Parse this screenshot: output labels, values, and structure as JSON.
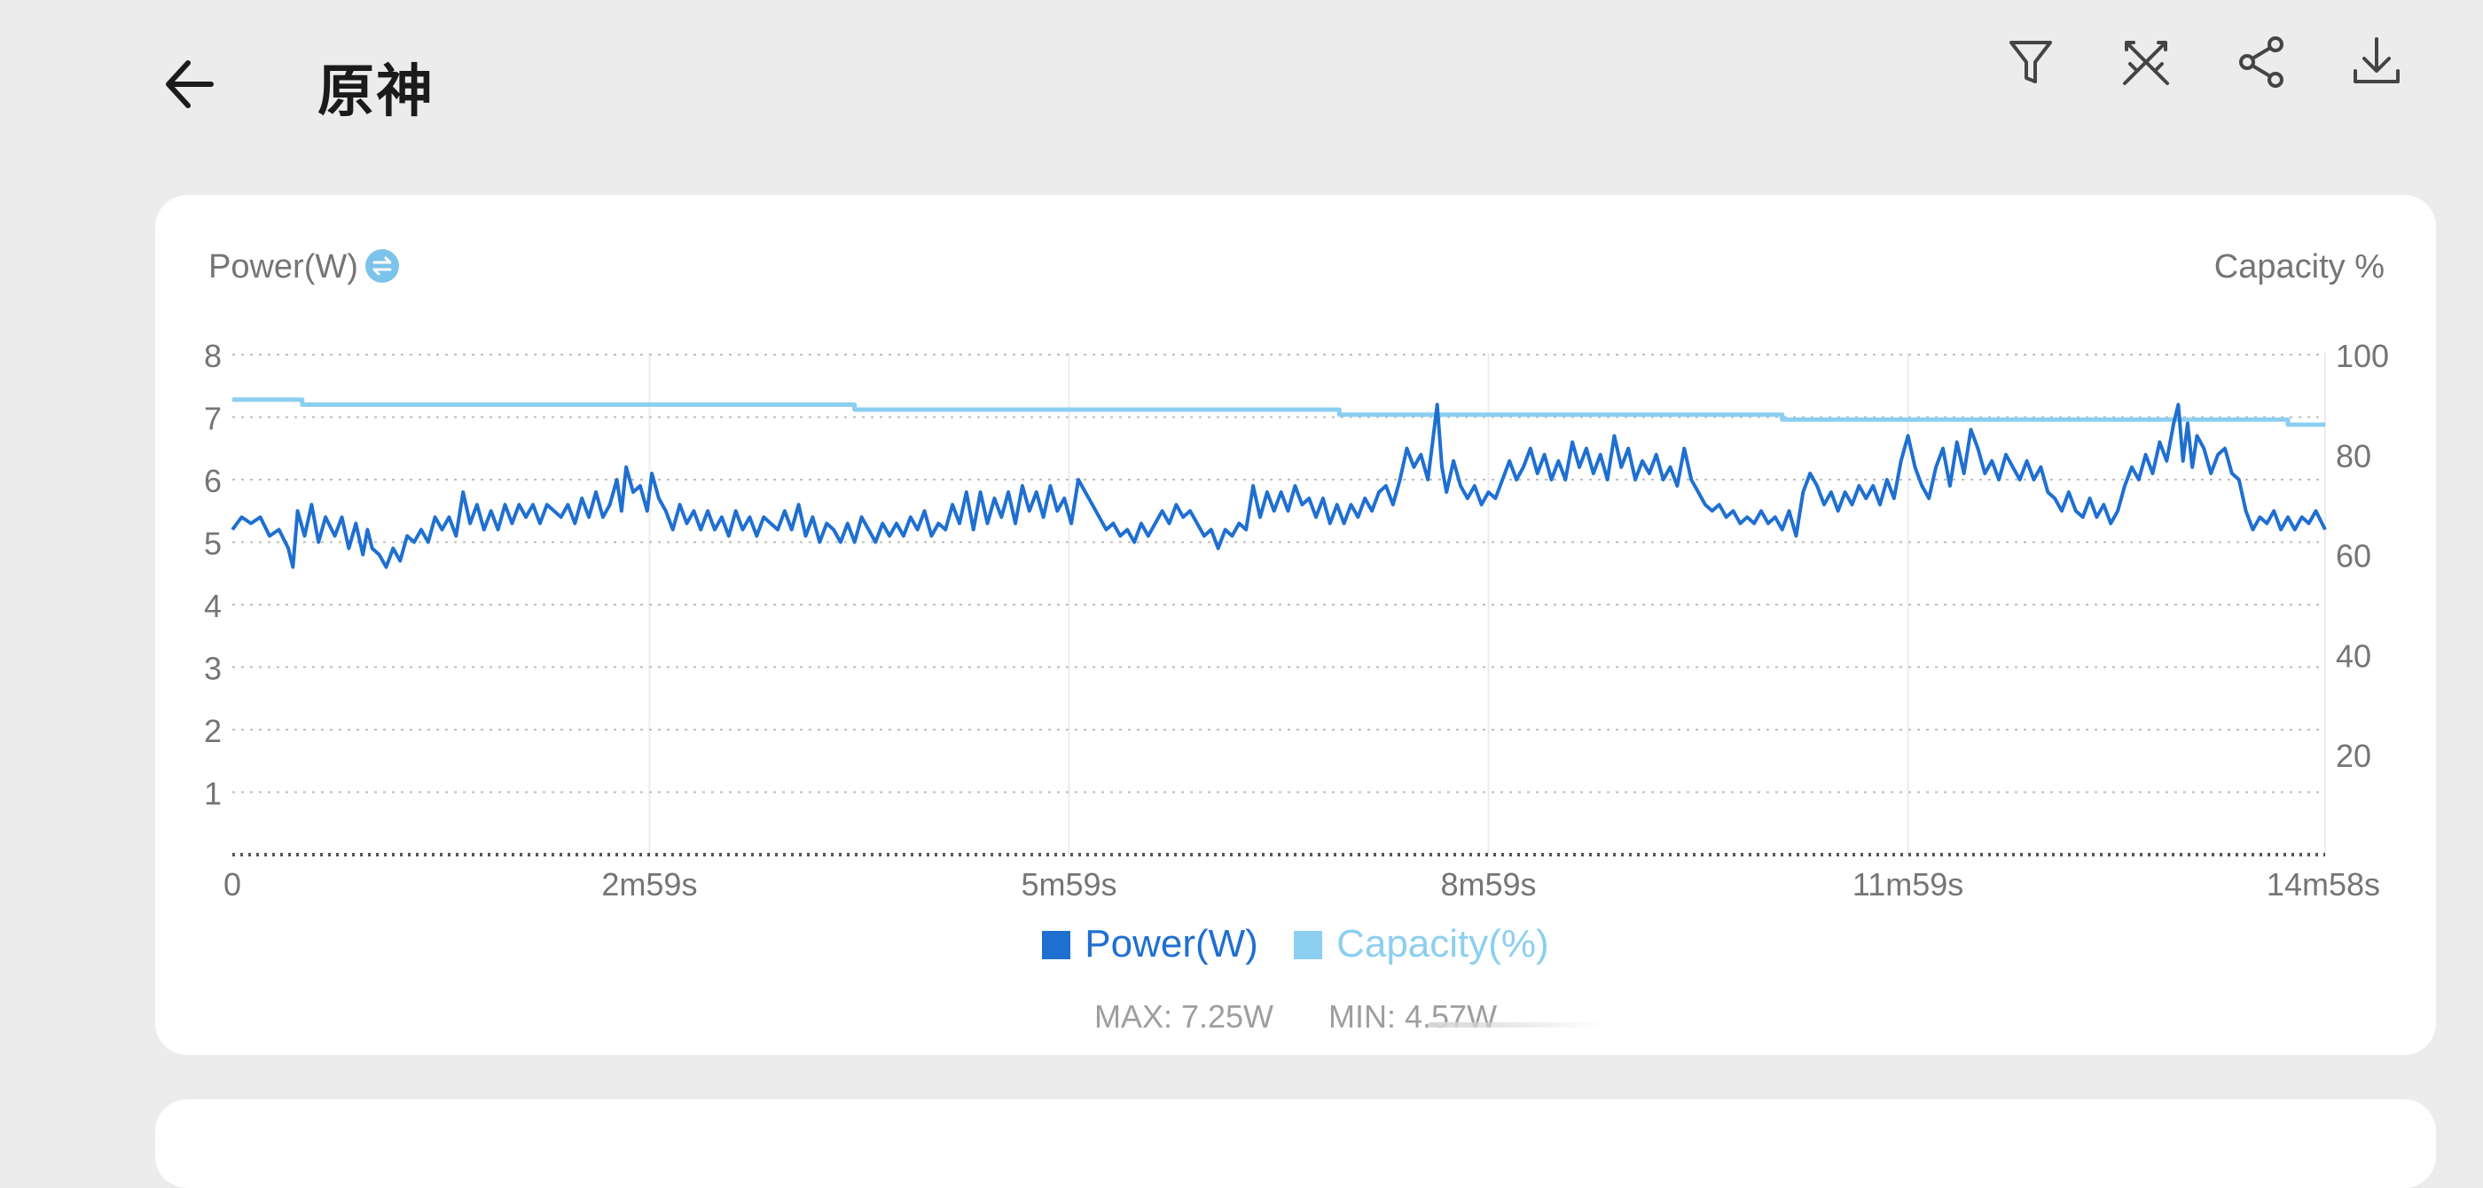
{
  "header": {
    "title": "原神"
  },
  "toolbar": {
    "icons": [
      "filter-icon",
      "crossed-swords-icon",
      "share-icon",
      "download-icon"
    ]
  },
  "colors": {
    "power": "#1f6fd1",
    "capacity": "#8ccff0",
    "swap_icon": "#7cc3ec"
  },
  "chart_data": {
    "type": "line",
    "ylabel_left": "Power(W)",
    "ylabel_right": "Capacity %",
    "y_left": {
      "lim": [
        0,
        8
      ],
      "ticks": [
        1,
        2,
        3,
        4,
        5,
        6,
        7,
        8
      ]
    },
    "y_right": {
      "lim": [
        0,
        100
      ],
      "ticks": [
        20,
        40,
        60,
        80,
        100
      ]
    },
    "x_lim": [
      0,
      898
    ],
    "x_ticks": [
      {
        "value": 0,
        "label": "0"
      },
      {
        "value": 179,
        "label": "2m59s"
      },
      {
        "value": 359,
        "label": "5m59s"
      },
      {
        "value": 539,
        "label": "8m59s"
      },
      {
        "value": 719,
        "label": "11m59s"
      },
      {
        "value": 898,
        "label": "14m58s"
      }
    ],
    "grid": true,
    "legend_position": "bottom-center",
    "series": [
      {
        "name": "Power(W)",
        "axis": "left",
        "points": [
          [
            0,
            5.2
          ],
          [
            4,
            5.4
          ],
          [
            8,
            5.3
          ],
          [
            12,
            5.4
          ],
          [
            16,
            5.1
          ],
          [
            20,
            5.2
          ],
          [
            24,
            4.9
          ],
          [
            26,
            4.6
          ],
          [
            28,
            5.5
          ],
          [
            31,
            5.1
          ],
          [
            34,
            5.6
          ],
          [
            37,
            5.0
          ],
          [
            40,
            5.4
          ],
          [
            44,
            5.1
          ],
          [
            47,
            5.4
          ],
          [
            50,
            4.9
          ],
          [
            53,
            5.3
          ],
          [
            56,
            4.8
          ],
          [
            58,
            5.2
          ],
          [
            60,
            4.9
          ],
          [
            63,
            4.8
          ],
          [
            66,
            4.6
          ],
          [
            69,
            4.9
          ],
          [
            72,
            4.7
          ],
          [
            75,
            5.1
          ],
          [
            78,
            5.0
          ],
          [
            81,
            5.2
          ],
          [
            84,
            5.0
          ],
          [
            87,
            5.4
          ],
          [
            90,
            5.2
          ],
          [
            93,
            5.4
          ],
          [
            96,
            5.1
          ],
          [
            99,
            5.8
          ],
          [
            102,
            5.3
          ],
          [
            105,
            5.6
          ],
          [
            108,
            5.2
          ],
          [
            111,
            5.5
          ],
          [
            114,
            5.2
          ],
          [
            117,
            5.6
          ],
          [
            120,
            5.3
          ],
          [
            123,
            5.6
          ],
          [
            126,
            5.4
          ],
          [
            129,
            5.6
          ],
          [
            132,
            5.3
          ],
          [
            135,
            5.6
          ],
          [
            138,
            5.5
          ],
          [
            141,
            5.4
          ],
          [
            144,
            5.6
          ],
          [
            147,
            5.3
          ],
          [
            150,
            5.7
          ],
          [
            153,
            5.4
          ],
          [
            156,
            5.8
          ],
          [
            159,
            5.4
          ],
          [
            162,
            5.6
          ],
          [
            165,
            6.0
          ],
          [
            167,
            5.5
          ],
          [
            169,
            6.2
          ],
          [
            172,
            5.8
          ],
          [
            175,
            5.9
          ],
          [
            178,
            5.5
          ],
          [
            180,
            6.1
          ],
          [
            183,
            5.7
          ],
          [
            186,
            5.5
          ],
          [
            189,
            5.2
          ],
          [
            192,
            5.6
          ],
          [
            195,
            5.3
          ],
          [
            198,
            5.5
          ],
          [
            201,
            5.2
          ],
          [
            204,
            5.5
          ],
          [
            207,
            5.2
          ],
          [
            210,
            5.4
          ],
          [
            213,
            5.1
          ],
          [
            216,
            5.5
          ],
          [
            219,
            5.2
          ],
          [
            222,
            5.4
          ],
          [
            225,
            5.1
          ],
          [
            228,
            5.4
          ],
          [
            231,
            5.3
          ],
          [
            234,
            5.2
          ],
          [
            237,
            5.5
          ],
          [
            240,
            5.2
          ],
          [
            243,
            5.6
          ],
          [
            246,
            5.1
          ],
          [
            249,
            5.4
          ],
          [
            252,
            5.0
          ],
          [
            255,
            5.3
          ],
          [
            258,
            5.2
          ],
          [
            261,
            5.0
          ],
          [
            264,
            5.3
          ],
          [
            267,
            5.0
          ],
          [
            270,
            5.4
          ],
          [
            273,
            5.2
          ],
          [
            276,
            5.0
          ],
          [
            279,
            5.3
          ],
          [
            282,
            5.1
          ],
          [
            285,
            5.3
          ],
          [
            288,
            5.1
          ],
          [
            291,
            5.4
          ],
          [
            294,
            5.2
          ],
          [
            297,
            5.5
          ],
          [
            300,
            5.1
          ],
          [
            303,
            5.3
          ],
          [
            306,
            5.2
          ],
          [
            309,
            5.6
          ],
          [
            312,
            5.3
          ],
          [
            315,
            5.8
          ],
          [
            318,
            5.2
          ],
          [
            321,
            5.8
          ],
          [
            324,
            5.3
          ],
          [
            327,
            5.7
          ],
          [
            330,
            5.4
          ],
          [
            333,
            5.8
          ],
          [
            336,
            5.3
          ],
          [
            339,
            5.9
          ],
          [
            342,
            5.5
          ],
          [
            345,
            5.8
          ],
          [
            348,
            5.4
          ],
          [
            351,
            5.9
          ],
          [
            354,
            5.5
          ],
          [
            357,
            5.7
          ],
          [
            360,
            5.3
          ],
          [
            363,
            6.0
          ],
          [
            366,
            5.8
          ],
          [
            369,
            5.6
          ],
          [
            372,
            5.4
          ],
          [
            375,
            5.2
          ],
          [
            378,
            5.3
          ],
          [
            381,
            5.1
          ],
          [
            384,
            5.2
          ],
          [
            387,
            5.0
          ],
          [
            390,
            5.3
          ],
          [
            393,
            5.1
          ],
          [
            396,
            5.3
          ],
          [
            399,
            5.5
          ],
          [
            402,
            5.3
          ],
          [
            405,
            5.6
          ],
          [
            408,
            5.4
          ],
          [
            411,
            5.5
          ],
          [
            414,
            5.3
          ],
          [
            417,
            5.1
          ],
          [
            420,
            5.2
          ],
          [
            423,
            4.9
          ],
          [
            426,
            5.2
          ],
          [
            429,
            5.1
          ],
          [
            432,
            5.3
          ],
          [
            435,
            5.2
          ],
          [
            438,
            5.9
          ],
          [
            441,
            5.4
          ],
          [
            444,
            5.8
          ],
          [
            447,
            5.5
          ],
          [
            450,
            5.8
          ],
          [
            453,
            5.5
          ],
          [
            456,
            5.9
          ],
          [
            459,
            5.6
          ],
          [
            462,
            5.7
          ],
          [
            465,
            5.4
          ],
          [
            468,
            5.7
          ],
          [
            471,
            5.3
          ],
          [
            474,
            5.6
          ],
          [
            477,
            5.3
          ],
          [
            480,
            5.6
          ],
          [
            483,
            5.4
          ],
          [
            486,
            5.7
          ],
          [
            489,
            5.5
          ],
          [
            492,
            5.8
          ],
          [
            495,
            5.9
          ],
          [
            498,
            5.6
          ],
          [
            501,
            6.0
          ],
          [
            504,
            6.5
          ],
          [
            507,
            6.2
          ],
          [
            510,
            6.4
          ],
          [
            513,
            6.0
          ],
          [
            515,
            6.6
          ],
          [
            517,
            7.2
          ],
          [
            519,
            6.2
          ],
          [
            521,
            5.8
          ],
          [
            524,
            6.3
          ],
          [
            527,
            5.9
          ],
          [
            530,
            5.7
          ],
          [
            533,
            5.9
          ],
          [
            536,
            5.6
          ],
          [
            539,
            5.8
          ],
          [
            542,
            5.7
          ],
          [
            545,
            6.0
          ],
          [
            548,
            6.3
          ],
          [
            551,
            6.0
          ],
          [
            554,
            6.2
          ],
          [
            557,
            6.5
          ],
          [
            560,
            6.1
          ],
          [
            563,
            6.4
          ],
          [
            566,
            6.0
          ],
          [
            569,
            6.3
          ],
          [
            572,
            6.0
          ],
          [
            575,
            6.6
          ],
          [
            578,
            6.2
          ],
          [
            581,
            6.5
          ],
          [
            584,
            6.1
          ],
          [
            587,
            6.4
          ],
          [
            590,
            6.0
          ],
          [
            593,
            6.7
          ],
          [
            596,
            6.2
          ],
          [
            599,
            6.5
          ],
          [
            602,
            6.0
          ],
          [
            605,
            6.3
          ],
          [
            608,
            6.1
          ],
          [
            611,
            6.4
          ],
          [
            614,
            6.0
          ],
          [
            617,
            6.2
          ],
          [
            620,
            5.9
          ],
          [
            623,
            6.5
          ],
          [
            626,
            6.0
          ],
          [
            629,
            5.8
          ],
          [
            632,
            5.6
          ],
          [
            635,
            5.5
          ],
          [
            638,
            5.6
          ],
          [
            641,
            5.4
          ],
          [
            644,
            5.5
          ],
          [
            647,
            5.3
          ],
          [
            650,
            5.4
          ],
          [
            653,
            5.3
          ],
          [
            656,
            5.5
          ],
          [
            659,
            5.3
          ],
          [
            662,
            5.4
          ],
          [
            665,
            5.2
          ],
          [
            668,
            5.5
          ],
          [
            671,
            5.1
          ],
          [
            674,
            5.8
          ],
          [
            677,
            6.1
          ],
          [
            680,
            5.9
          ],
          [
            683,
            5.6
          ],
          [
            686,
            5.8
          ],
          [
            689,
            5.5
          ],
          [
            692,
            5.8
          ],
          [
            695,
            5.6
          ],
          [
            698,
            5.9
          ],
          [
            701,
            5.7
          ],
          [
            704,
            5.9
          ],
          [
            707,
            5.6
          ],
          [
            710,
            6.0
          ],
          [
            713,
            5.7
          ],
          [
            716,
            6.3
          ],
          [
            719,
            6.7
          ],
          [
            722,
            6.2
          ],
          [
            725,
            5.9
          ],
          [
            728,
            5.7
          ],
          [
            731,
            6.2
          ],
          [
            734,
            6.5
          ],
          [
            737,
            5.9
          ],
          [
            740,
            6.6
          ],
          [
            743,
            6.1
          ],
          [
            746,
            6.8
          ],
          [
            749,
            6.5
          ],
          [
            752,
            6.1
          ],
          [
            755,
            6.3
          ],
          [
            758,
            6.0
          ],
          [
            761,
            6.4
          ],
          [
            764,
            6.2
          ],
          [
            767,
            6.0
          ],
          [
            770,
            6.3
          ],
          [
            773,
            6.0
          ],
          [
            776,
            6.2
          ],
          [
            779,
            5.8
          ],
          [
            782,
            5.7
          ],
          [
            785,
            5.5
          ],
          [
            788,
            5.8
          ],
          [
            791,
            5.5
          ],
          [
            794,
            5.4
          ],
          [
            797,
            5.7
          ],
          [
            800,
            5.4
          ],
          [
            803,
            5.6
          ],
          [
            806,
            5.3
          ],
          [
            809,
            5.5
          ],
          [
            812,
            5.9
          ],
          [
            815,
            6.2
          ],
          [
            818,
            6.0
          ],
          [
            821,
            6.4
          ],
          [
            824,
            6.1
          ],
          [
            827,
            6.6
          ],
          [
            830,
            6.3
          ],
          [
            833,
            6.9
          ],
          [
            835,
            7.2
          ],
          [
            837,
            6.3
          ],
          [
            839,
            6.9
          ],
          [
            841,
            6.2
          ],
          [
            843,
            6.7
          ],
          [
            846,
            6.5
          ],
          [
            849,
            6.1
          ],
          [
            852,
            6.4
          ],
          [
            855,
            6.5
          ],
          [
            858,
            6.1
          ],
          [
            861,
            6.0
          ],
          [
            864,
            5.5
          ],
          [
            867,
            5.2
          ],
          [
            870,
            5.4
          ],
          [
            873,
            5.3
          ],
          [
            876,
            5.5
          ],
          [
            879,
            5.2
          ],
          [
            882,
            5.4
          ],
          [
            885,
            5.2
          ],
          [
            888,
            5.4
          ],
          [
            891,
            5.3
          ],
          [
            894,
            5.5
          ],
          [
            898,
            5.2
          ]
        ]
      },
      {
        "name": "Capacity(%)",
        "axis": "right",
        "points": [
          [
            0,
            91
          ],
          [
            30,
            91
          ],
          [
            30,
            90
          ],
          [
            267,
            90
          ],
          [
            267,
            89
          ],
          [
            475,
            89
          ],
          [
            475,
            88
          ],
          [
            665,
            88
          ],
          [
            665,
            87
          ],
          [
            882,
            87
          ],
          [
            882,
            86
          ],
          [
            898,
            86
          ]
        ]
      }
    ],
    "stats": {
      "max": "MAX: 7.25W",
      "min": "MIN: 4.57W"
    }
  }
}
